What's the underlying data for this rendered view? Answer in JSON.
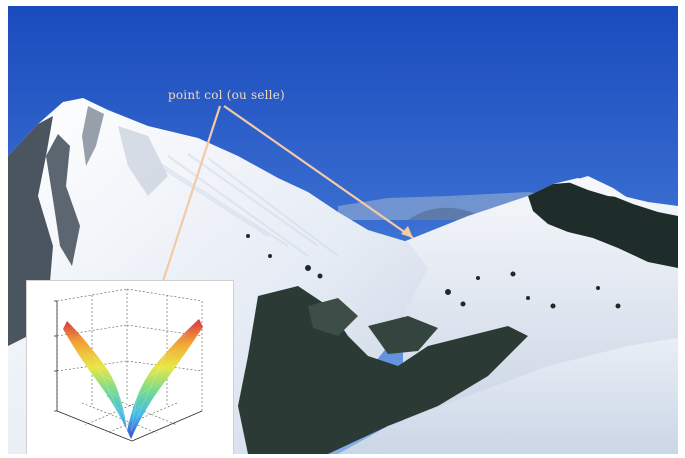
{
  "annotation": {
    "label": "point col (ou selle)",
    "arrow_color": "#f3c9a6"
  },
  "colors": {
    "sky_top": "#1c4fc0",
    "sky_bottom": "#6f9fe0",
    "snow": "#eef2f8",
    "rock": "#3f4a55",
    "forest": "#1d2a24"
  },
  "inset_plot": {
    "description_type": "3d-surface",
    "colormap": "jet"
  }
}
